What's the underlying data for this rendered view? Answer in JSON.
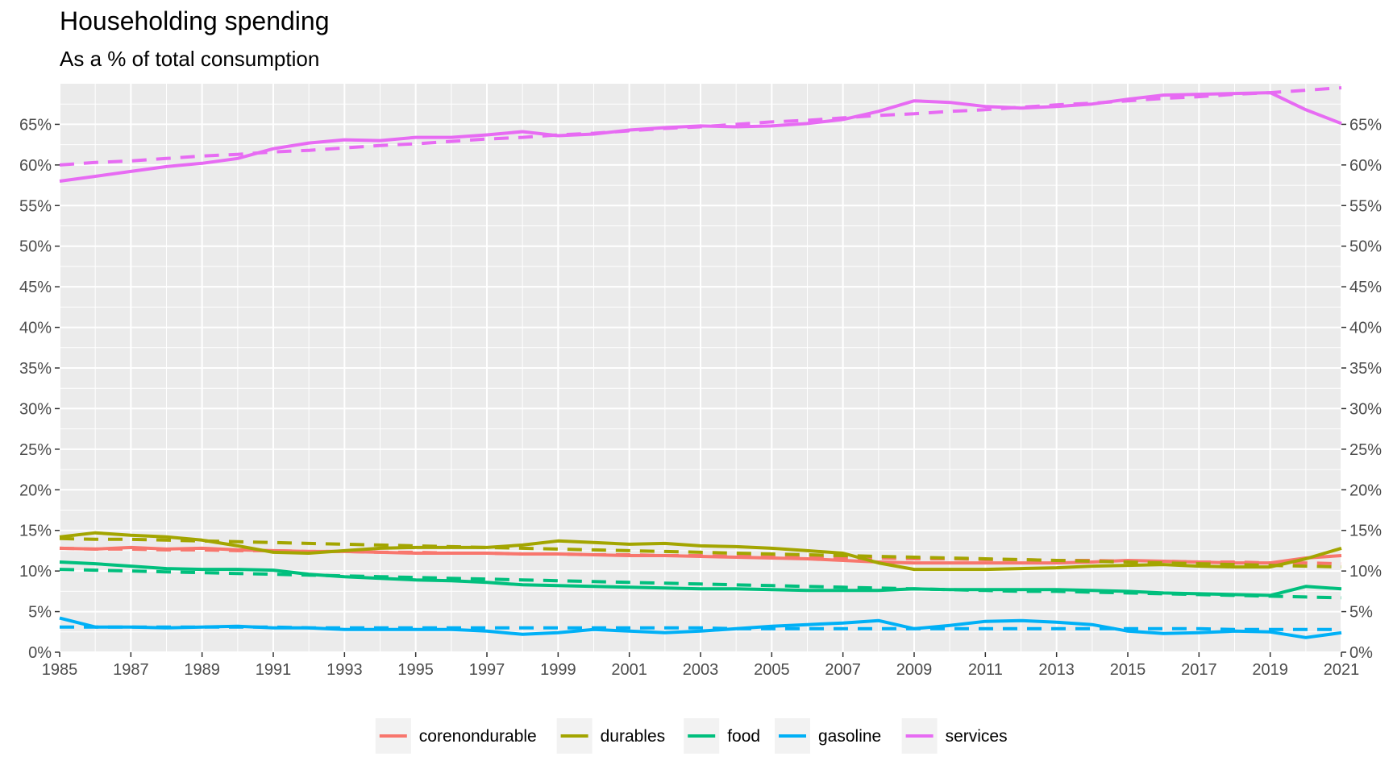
{
  "chart_data": {
    "type": "line",
    "title": "Householding spending",
    "subtitle": "As a % of total consumption",
    "xlabel": "",
    "ylabel": "",
    "x": [
      1985,
      1986,
      1987,
      1988,
      1989,
      1990,
      1991,
      1992,
      1993,
      1994,
      1995,
      1996,
      1997,
      1998,
      1999,
      2000,
      2001,
      2002,
      2003,
      2004,
      2005,
      2006,
      2007,
      2008,
      2009,
      2010,
      2011,
      2012,
      2013,
      2014,
      2015,
      2016,
      2017,
      2018,
      2019,
      2020,
      2021
    ],
    "xlim": [
      1985,
      2021
    ],
    "ylim": [
      0,
      70
    ],
    "x_ticks": [
      "1985",
      "1987",
      "1989",
      "1991",
      "1993",
      "1995",
      "1997",
      "1999",
      "2001",
      "2003",
      "2005",
      "2007",
      "2009",
      "2011",
      "2013",
      "2015",
      "2017",
      "2019",
      "2021"
    ],
    "y_ticks": [
      "0%",
      "5%",
      "10%",
      "15%",
      "20%",
      "25%",
      "30%",
      "35%",
      "40%",
      "45%",
      "50%",
      "55%",
      "60%",
      "65%"
    ],
    "secondary_y_axis": true,
    "grid": true,
    "legend_position": "bottom",
    "series": [
      {
        "name": "corenondurable",
        "color": "#F8766D",
        "values": [
          12.8,
          12.7,
          12.9,
          12.7,
          12.8,
          12.6,
          12.5,
          12.4,
          12.4,
          12.3,
          12.2,
          12.2,
          12.2,
          12.1,
          12.1,
          12.0,
          11.9,
          11.9,
          11.8,
          11.7,
          11.6,
          11.5,
          11.3,
          11.1,
          11.0,
          11.0,
          11.0,
          11.0,
          11.0,
          11.1,
          11.3,
          11.2,
          11.1,
          11.0,
          11.0,
          11.6,
          11.9
        ],
        "trend": [
          12.8,
          12.7,
          12.7,
          12.6,
          12.6,
          12.5,
          12.5,
          12.4,
          12.4,
          12.3,
          12.3,
          12.2,
          12.2,
          12.1,
          12.1,
          12.0,
          12.0,
          11.9,
          11.9,
          11.8,
          11.8,
          11.7,
          11.6,
          11.6,
          11.5,
          11.5,
          11.4,
          11.4,
          11.3,
          11.3,
          11.2,
          11.2,
          11.1,
          11.1,
          11.0,
          11.0,
          10.9
        ]
      },
      {
        "name": "durables",
        "color": "#A3A500",
        "values": [
          14.2,
          14.7,
          14.4,
          14.2,
          13.8,
          13.1,
          12.3,
          12.2,
          12.5,
          12.8,
          12.9,
          12.9,
          12.9,
          13.2,
          13.7,
          13.5,
          13.3,
          13.4,
          13.1,
          13.0,
          12.8,
          12.5,
          12.2,
          11.0,
          10.2,
          10.2,
          10.2,
          10.3,
          10.4,
          10.6,
          10.7,
          10.8,
          10.6,
          10.5,
          10.5,
          11.5,
          12.8
        ],
        "trend": [
          14.0,
          13.9,
          13.9,
          13.8,
          13.7,
          13.6,
          13.5,
          13.4,
          13.3,
          13.2,
          13.1,
          13.0,
          12.9,
          12.8,
          12.7,
          12.6,
          12.5,
          12.4,
          12.3,
          12.2,
          12.1,
          12.0,
          11.9,
          11.8,
          11.7,
          11.6,
          11.5,
          11.4,
          11.3,
          11.2,
          11.1,
          11.0,
          10.9,
          10.8,
          10.7,
          10.6,
          10.5
        ]
      },
      {
        "name": "food",
        "color": "#00BF7D",
        "values": [
          11.1,
          10.9,
          10.6,
          10.3,
          10.2,
          10.2,
          10.1,
          9.6,
          9.3,
          9.1,
          8.9,
          8.8,
          8.6,
          8.3,
          8.2,
          8.1,
          8.0,
          7.9,
          7.8,
          7.8,
          7.7,
          7.6,
          7.6,
          7.6,
          7.8,
          7.7,
          7.7,
          7.7,
          7.7,
          7.6,
          7.5,
          7.3,
          7.2,
          7.1,
          7.0,
          8.1,
          7.8
        ],
        "trend": [
          10.2,
          10.1,
          10.0,
          9.9,
          9.8,
          9.7,
          9.6,
          9.5,
          9.4,
          9.3,
          9.2,
          9.1,
          9.0,
          8.9,
          8.8,
          8.7,
          8.6,
          8.5,
          8.4,
          8.3,
          8.2,
          8.1,
          8.0,
          7.9,
          7.8,
          7.7,
          7.6,
          7.5,
          7.5,
          7.4,
          7.3,
          7.2,
          7.1,
          7.0,
          6.9,
          6.8,
          6.7
        ]
      },
      {
        "name": "gasoline",
        "color": "#00B0F6",
        "values": [
          4.2,
          3.1,
          3.1,
          3.0,
          3.1,
          3.2,
          3.0,
          3.0,
          2.8,
          2.8,
          2.8,
          2.8,
          2.6,
          2.2,
          2.4,
          2.8,
          2.6,
          2.4,
          2.6,
          2.9,
          3.2,
          3.4,
          3.6,
          3.9,
          2.9,
          3.3,
          3.8,
          3.9,
          3.7,
          3.4,
          2.6,
          2.3,
          2.4,
          2.6,
          2.5,
          1.8,
          2.4
        ],
        "trend": [
          3.1,
          3.1,
          3.1,
          3.1,
          3.1,
          3.1,
          3.1,
          3.0,
          3.0,
          3.0,
          3.0,
          3.0,
          3.0,
          3.0,
          3.0,
          3.0,
          3.0,
          3.0,
          3.0,
          2.9,
          2.9,
          2.9,
          2.9,
          2.9,
          2.9,
          2.9,
          2.9,
          2.9,
          2.9,
          2.9,
          2.9,
          2.9,
          2.9,
          2.8,
          2.8,
          2.8,
          2.8
        ]
      },
      {
        "name": "services",
        "color": "#E76BF3",
        "values": [
          58.0,
          58.6,
          59.2,
          59.8,
          60.2,
          60.8,
          62.0,
          62.7,
          63.1,
          63.0,
          63.4,
          63.4,
          63.7,
          64.1,
          63.6,
          63.8,
          64.3,
          64.6,
          64.8,
          64.7,
          64.8,
          65.1,
          65.6,
          66.6,
          67.9,
          67.7,
          67.2,
          67.0,
          67.2,
          67.5,
          68.1,
          68.6,
          68.7,
          68.8,
          68.9,
          66.8,
          65.1
        ],
        "trend": [
          60.0,
          60.3,
          60.5,
          60.8,
          61.1,
          61.3,
          61.6,
          61.8,
          62.1,
          62.4,
          62.6,
          62.9,
          63.2,
          63.4,
          63.7,
          63.9,
          64.2,
          64.5,
          64.7,
          65.0,
          65.3,
          65.5,
          65.8,
          66.1,
          66.3,
          66.6,
          66.8,
          67.1,
          67.4,
          67.6,
          67.9,
          68.2,
          68.4,
          68.7,
          68.9,
          69.2,
          69.5
        ]
      }
    ]
  }
}
